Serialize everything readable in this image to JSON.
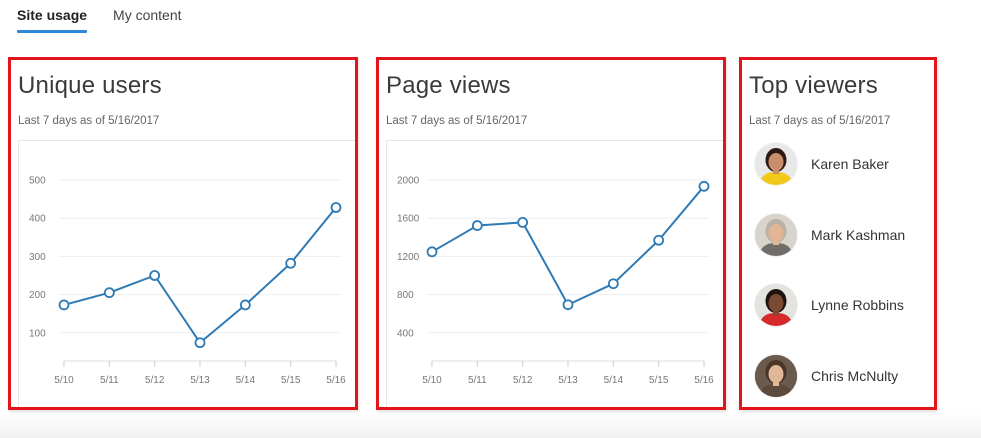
{
  "tabs": [
    {
      "label": "Site usage",
      "active": true
    },
    {
      "label": "My content",
      "active": false
    }
  ],
  "cards": {
    "unique_users": {
      "title": "Unique users",
      "subtitle": "Last 7 days as of 5/16/2017"
    },
    "page_views": {
      "title": "Page views",
      "subtitle": "Last 7 days as of 5/16/2017"
    },
    "top_viewers": {
      "title": "Top viewers",
      "subtitle": "Last 7 days as of 5/16/2017",
      "viewers": [
        {
          "name": "Karen Baker",
          "avatar": "avatar-photo",
          "skin": "#c98f6c",
          "hair": "#2b1a12",
          "shirt": "#f2c81a",
          "bg": "#e8e8e8"
        },
        {
          "name": "Mark Kashman",
          "avatar": "avatar-photo",
          "skin": "#e2b595",
          "hair": "#b9b2a6",
          "shirt": "#6f6e6a",
          "bg": "#d8d4cc"
        },
        {
          "name": "Lynne Robbins",
          "avatar": "avatar-photo",
          "skin": "#7a4a32",
          "hair": "#1d120d",
          "shirt": "#d62a2a",
          "bg": "#e3e3e0"
        },
        {
          "name": "Chris McNulty",
          "avatar": "avatar-photo",
          "skin": "#e0b898",
          "hair": "#4a3426",
          "shirt": "#5e4a3c",
          "bg": "#6b5a4e"
        }
      ]
    }
  },
  "colors": {
    "line": "#2e7ab5",
    "highlight_border": "#e3141c",
    "tab_underline": "#2b88d8",
    "grid": "#eeeeee"
  },
  "chart_data": [
    {
      "type": "line",
      "title": "Unique users",
      "subtitle": "Last 7 days as of 5/16/2017",
      "categories": [
        "5/10",
        "5/11",
        "5/12",
        "5/13",
        "5/14",
        "5/15",
        "5/16"
      ],
      "values": [
        173,
        205,
        250,
        74,
        173,
        282,
        428
      ],
      "yticks": [
        100,
        200,
        300,
        400,
        500
      ],
      "ylim": [
        0,
        500
      ],
      "xlabel": "",
      "ylabel": "",
      "grid": true,
      "legend": "none"
    },
    {
      "type": "line",
      "title": "Page views",
      "subtitle": "Last 7 days as of 5/16/2017",
      "categories": [
        "5/10",
        "5/11",
        "5/12",
        "5/13",
        "5/14",
        "5/15",
        "5/16"
      ],
      "values": [
        1248,
        1523,
        1556,
        694,
        914,
        1369,
        1934
      ],
      "yticks": [
        400,
        800,
        1200,
        1600,
        2000
      ],
      "ylim": [
        0,
        2000
      ],
      "xlabel": "",
      "ylabel": "",
      "grid": true,
      "legend": "none"
    }
  ]
}
